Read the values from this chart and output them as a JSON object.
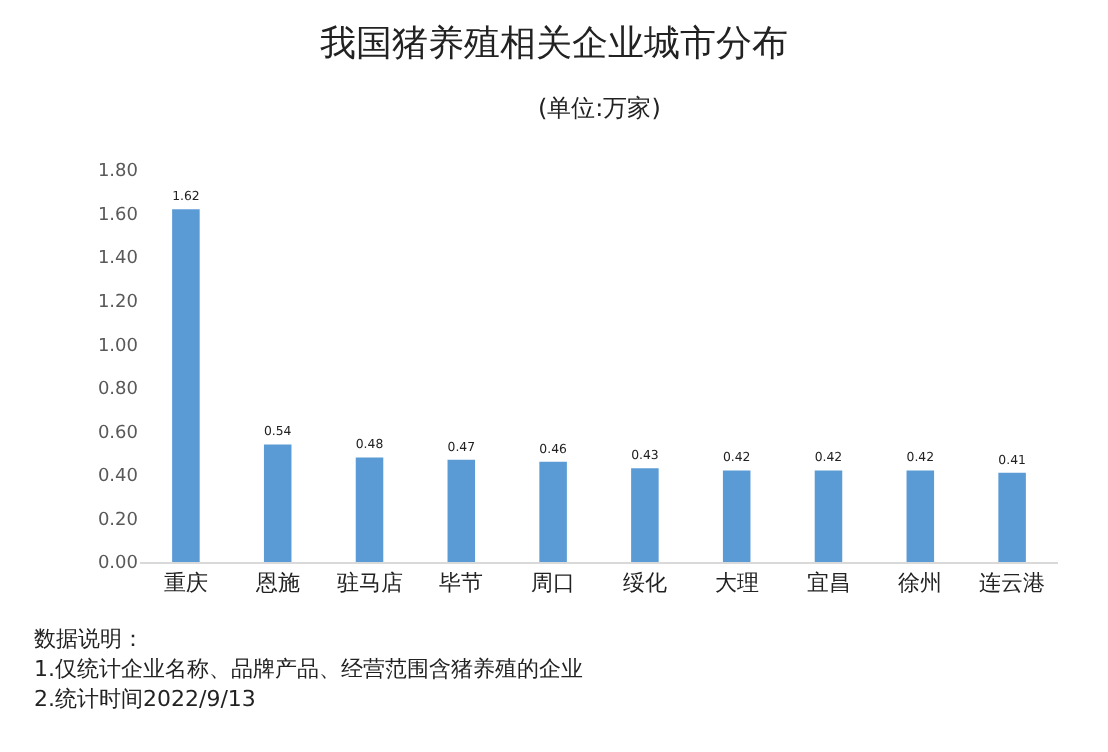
{
  "chart_data": {
    "type": "bar",
    "title": "我国猪养殖相关企业城市分布",
    "subtitle": "(单位:万家)",
    "categories": [
      "重庆",
      "恩施",
      "驻马店",
      "毕节",
      "周口",
      "绥化",
      "大理",
      "宜昌",
      "徐州",
      "连云港"
    ],
    "values": [
      1.62,
      0.54,
      0.48,
      0.47,
      0.46,
      0.43,
      0.42,
      0.42,
      0.42,
      0.41
    ],
    "color": "#5b9bd5",
    "data_labels": true,
    "grid": false,
    "ylim": [
      0,
      1.8
    ],
    "yticks": [
      {
        "value": 0,
        "label": "0.00"
      },
      {
        "value": 0.2,
        "label": "0.20"
      },
      {
        "value": 0.4,
        "label": "0.40"
      },
      {
        "value": 0.6,
        "label": "0.60"
      },
      {
        "value": 0.8,
        "label": "0.80"
      },
      {
        "value": 1.0,
        "label": "1.00"
      },
      {
        "value": 1.2,
        "label": "1.20"
      },
      {
        "value": 1.4,
        "label": "1.40"
      },
      {
        "value": 1.6,
        "label": "1.60"
      },
      {
        "value": 1.8,
        "label": "1.80"
      }
    ],
    "annotations": [
      "数据说明：",
      "1.仅统计企业名称、品牌产品、经营范围含猪养殖的企业",
      "2.统计时间2022/9/13"
    ]
  }
}
